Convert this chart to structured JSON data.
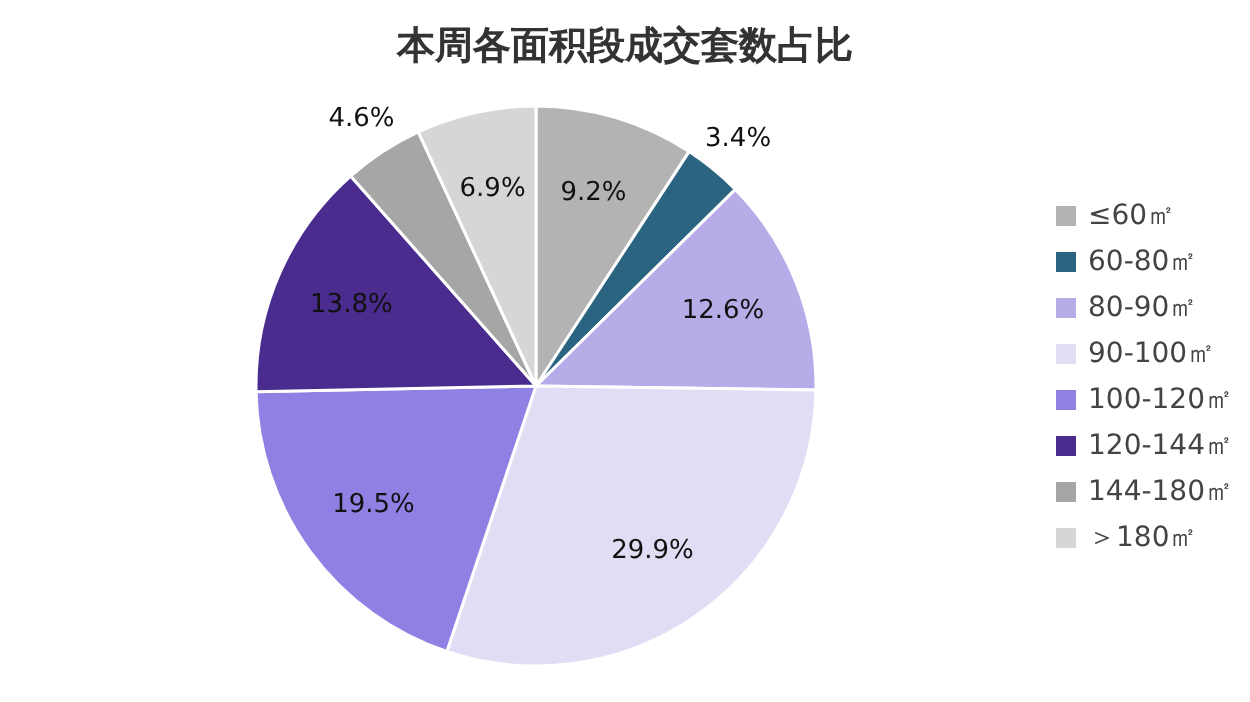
{
  "chart_data": {
    "type": "pie",
    "title": "本周各面积段成交套数占比",
    "categories": [
      "≤60㎡",
      "60-80㎡",
      "80-90㎡",
      "90-100㎡",
      "100-120㎡",
      "120-144㎡",
      "144-180㎡",
      "＞180㎡"
    ],
    "values": [
      9.2,
      3.4,
      12.6,
      29.9,
      19.5,
      13.8,
      4.6,
      6.9
    ],
    "colors": [
      "#b3b3b3",
      "#2a6480",
      "#b7ace8",
      "#e2ddf4",
      "#8f80e3",
      "#4a2b8e",
      "#a6a6a6",
      "#d6d6d6"
    ],
    "value_labels": [
      "9.2%",
      "3.4%",
      "12.6%",
      "29.9%",
      "19.5%",
      "13.8%",
      "4.6%",
      "6.9%"
    ],
    "legend": "right"
  }
}
